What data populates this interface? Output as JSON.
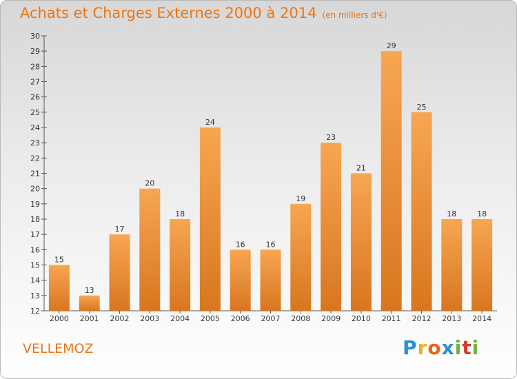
{
  "header": {
    "title": "Achats et Charges Externes 2000 à 2014",
    "subtitle": "(en milliers d'€)"
  },
  "commune": "VELLEMOZ",
  "brand": {
    "letters": [
      "P",
      "r",
      "o",
      "x",
      "i",
      "t",
      "i"
    ],
    "colors": [
      "#2a8fd3",
      "#e8b31f",
      "#e8641c",
      "#2a8fd3",
      "#6db33f",
      "#d93a2c",
      "#6db33f"
    ]
  },
  "colors": {
    "accent": "#ee7512",
    "bar_light": "#f7a652",
    "bar_dark": "#d8761f"
  },
  "chart_data": {
    "type": "bar",
    "title": "Achats et Charges Externes 2000 à 2014",
    "ylabel": "",
    "xlabel": "",
    "categories": [
      "2000",
      "2001",
      "2002",
      "2003",
      "2004",
      "2005",
      "2006",
      "2007",
      "2008",
      "2009",
      "2010",
      "2011",
      "2012",
      "2013",
      "2014"
    ],
    "values": [
      15,
      13,
      17,
      20,
      18,
      24,
      16,
      16,
      19,
      23,
      21,
      29,
      25,
      18,
      18
    ],
    "ylim": [
      12,
      30
    ],
    "yticks": [
      12,
      13,
      14,
      15,
      16,
      17,
      18,
      19,
      20,
      21,
      22,
      23,
      24,
      25,
      26,
      27,
      28,
      29,
      30
    ],
    "grid": false
  }
}
